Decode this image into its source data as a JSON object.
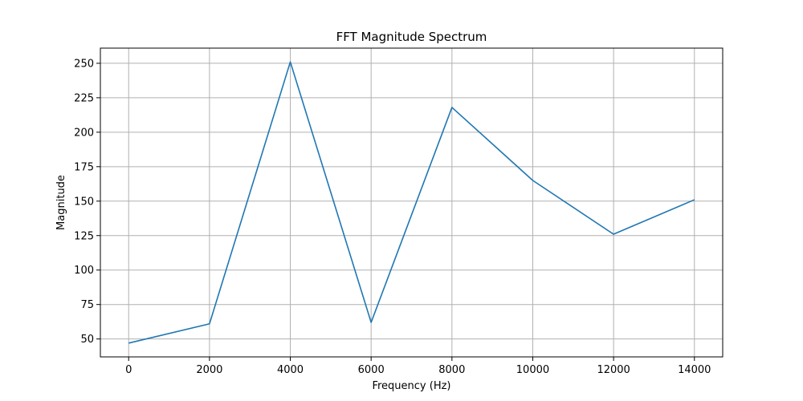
{
  "chart_data": {
    "type": "line",
    "title": "FFT Magnitude Spectrum",
    "xlabel": "Frequency (Hz)",
    "ylabel": "Magnitude",
    "xlim": [
      -700,
      14700
    ],
    "ylim": [
      37,
      261
    ],
    "xticks": [
      0,
      2000,
      4000,
      6000,
      8000,
      10000,
      12000,
      14000
    ],
    "yticks": [
      50,
      75,
      100,
      125,
      150,
      175,
      200,
      225,
      250
    ],
    "grid": true,
    "line_color": "#1f77b4",
    "series": [
      {
        "x": [
          0,
          2000,
          4000,
          6000,
          8000,
          10000,
          12000,
          14000
        ],
        "y": [
          47,
          61,
          251,
          62,
          218,
          165,
          126,
          151
        ]
      }
    ]
  }
}
